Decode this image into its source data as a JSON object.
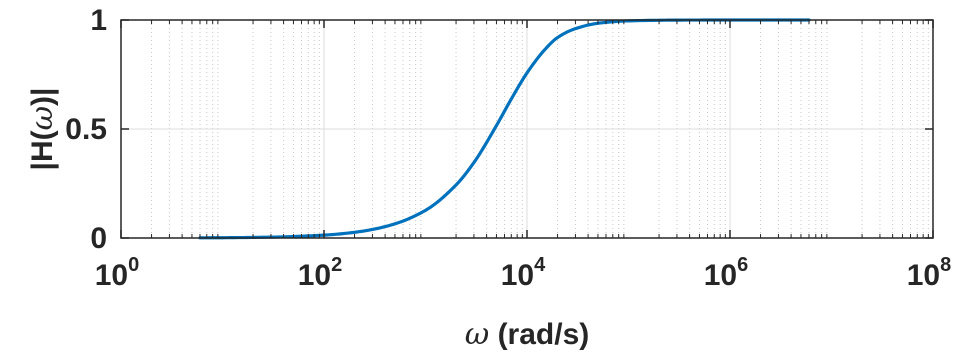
{
  "chart_data": {
    "type": "line",
    "x_scale": "log",
    "xlim": [
      1,
      100000000
    ],
    "ylim": [
      0,
      1
    ],
    "grid": true,
    "minor_grid": true,
    "x_ticks": [
      {
        "base": "10",
        "exp": "0",
        "value": 1
      },
      {
        "base": "10",
        "exp": "2",
        "value": 100
      },
      {
        "base": "10",
        "exp": "4",
        "value": 10000
      },
      {
        "base": "10",
        "exp": "6",
        "value": 1000000
      },
      {
        "base": "10",
        "exp": "8",
        "value": 100000000
      }
    ],
    "y_ticks": [
      {
        "label": "0",
        "value": 0
      },
      {
        "label": "0.5",
        "value": 0.5
      },
      {
        "label": "1",
        "value": 1
      }
    ],
    "xlabel": {
      "symbol": "ω",
      "rest": "(rad/s)"
    },
    "ylabel": {
      "prefix": "|H(",
      "symbol": "ω",
      "suffix": ")|"
    },
    "series": [
      {
        "color": "#0072BD",
        "points": [
          [
            6,
            0.0008
          ],
          [
            10,
            0.0013
          ],
          [
            30,
            0.004
          ],
          [
            100,
            0.0131
          ],
          [
            200,
            0.0261
          ],
          [
            300,
            0.0392
          ],
          [
            500,
            0.065
          ],
          [
            1000,
            0.1269
          ],
          [
            2000,
            0.2433
          ],
          [
            3000,
            0.3463
          ],
          [
            5000,
            0.5158
          ],
          [
            7000,
            0.6375
          ],
          [
            10000,
            0.7572
          ],
          [
            15000,
            0.8644
          ],
          [
            20000,
            0.9196
          ],
          [
            30000,
            0.9603
          ],
          [
            50000,
            0.985
          ],
          [
            100000,
            0.996
          ],
          [
            300000,
            0.9995
          ],
          [
            1000000,
            1.0
          ],
          [
            6000000,
            1.0
          ]
        ]
      }
    ]
  }
}
